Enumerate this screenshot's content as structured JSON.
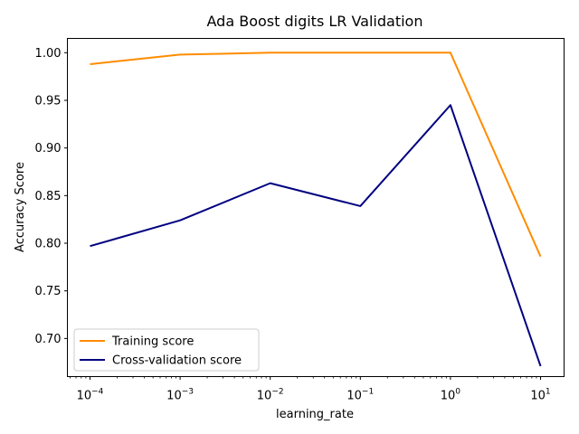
{
  "chart_data": {
    "type": "line",
    "title": "Ada Boost digits LR Validation",
    "xlabel": "learning_rate",
    "ylabel": "Accuracy Score",
    "xscale": "log",
    "x": [
      0.0001,
      0.001,
      0.01,
      0.1,
      1,
      10
    ],
    "x_tick_labels": [
      {
        "base": "10",
        "exp": "−4"
      },
      {
        "base": "10",
        "exp": "−3"
      },
      {
        "base": "10",
        "exp": "−2"
      },
      {
        "base": "10",
        "exp": "−1"
      },
      {
        "base": "10",
        "exp": "0"
      },
      {
        "base": "10",
        "exp": "1"
      }
    ],
    "ylim": [
      0.66,
      1.015
    ],
    "y_ticks": [
      "0.70",
      "0.75",
      "0.80",
      "0.85",
      "0.90",
      "0.95",
      "1.00"
    ],
    "grid": false,
    "legend_position": "lower-left",
    "series": [
      {
        "name": "Training score",
        "color": "#ff8c00",
        "values": [
          0.988,
          0.998,
          1.0,
          1.0,
          1.0,
          0.786
        ]
      },
      {
        "name": "Cross-validation score",
        "color": "#000080",
        "values": [
          0.797,
          0.824,
          0.863,
          0.839,
          0.945,
          0.671
        ]
      }
    ]
  }
}
